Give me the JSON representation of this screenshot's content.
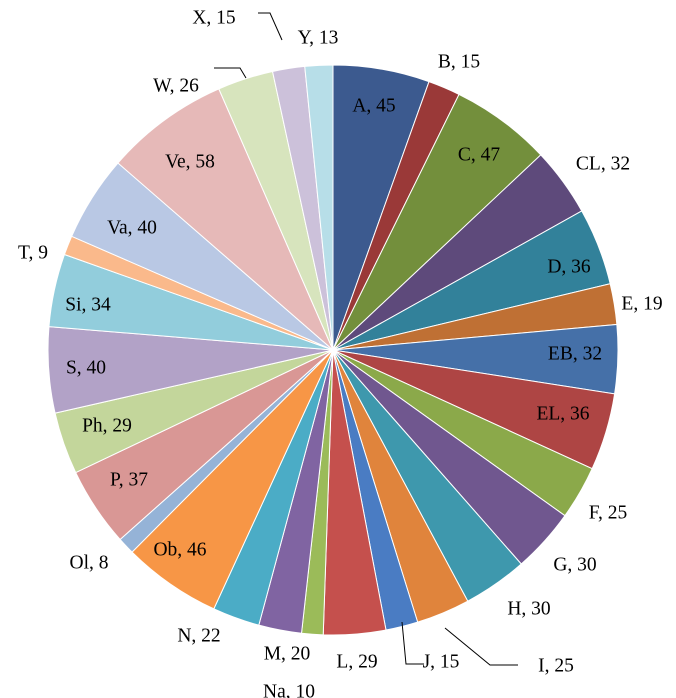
{
  "chart_data": {
    "type": "pie",
    "start_angle_deg": 0,
    "direction": "clockwise",
    "legend": "none",
    "data_label_format": "{category}, {value}",
    "slices": [
      {
        "category": "A",
        "value": 45,
        "label": "A, 45",
        "color": "#3c5a8f"
      },
      {
        "category": "B",
        "value": 15,
        "label": "B, 15",
        "color": "#9a3938"
      },
      {
        "category": "C",
        "value": 47,
        "label": "C, 47",
        "color": "#738f3c"
      },
      {
        "category": "CL",
        "value": 32,
        "label": "CL, 32",
        "color": "#5e4a7b"
      },
      {
        "category": "D",
        "value": 36,
        "label": "D, 36",
        "color": "#32819a"
      },
      {
        "category": "E",
        "value": 19,
        "label": "E, 19",
        "color": "#bf7034"
      },
      {
        "category": "EB",
        "value": 32,
        "label": "EB, 32",
        "color": "#4570a8"
      },
      {
        "category": "EL",
        "value": 36,
        "label": "EL, 36",
        "color": "#ae4544"
      },
      {
        "category": "F",
        "value": 25,
        "label": "F, 25",
        "color": "#8ba94a"
      },
      {
        "category": "G",
        "value": 30,
        "label": "G, 30",
        "color": "#70578f"
      },
      {
        "category": "H",
        "value": 30,
        "label": "H, 30",
        "color": "#3e98ad"
      },
      {
        "category": "I",
        "value": 25,
        "label": "I, 25",
        "color": "#e0843c"
      },
      {
        "category": "J",
        "value": 15,
        "label": "J, 15",
        "color": "#4a7cc3"
      },
      {
        "category": "L",
        "value": 29,
        "label": "L, 29",
        "color": "#c5504d"
      },
      {
        "category": "Na",
        "value": 10,
        "label": "Na, 10",
        "color": "#9bbb59"
      },
      {
        "category": "M",
        "value": 20,
        "label": "M, 20",
        "color": "#8064a2"
      },
      {
        "category": "N",
        "value": 22,
        "label": "N, 22",
        "color": "#4bacc6"
      },
      {
        "category": "Ob",
        "value": 46,
        "label": "Ob, 46",
        "color": "#f79646"
      },
      {
        "category": "Ol",
        "value": 8,
        "label": "Ol, 8",
        "color": "#95b3d7"
      },
      {
        "category": "P",
        "value": 37,
        "label": "P, 37",
        "color": "#d99795"
      },
      {
        "category": "Ph",
        "value": 29,
        "label": "Ph, 29",
        "color": "#c3d69b"
      },
      {
        "category": "S",
        "value": 40,
        "label": "S, 40",
        "color": "#b2a2c7"
      },
      {
        "category": "Si",
        "value": 34,
        "label": "Si, 34",
        "color": "#92cddc"
      },
      {
        "category": "T",
        "value": 9,
        "label": "T, 9",
        "color": "#fab98b"
      },
      {
        "category": "Va",
        "value": 40,
        "label": "Va, 40",
        "color": "#b9c8e4"
      },
      {
        "category": "Ve",
        "value": 58,
        "label": "Ve, 58",
        "color": "#e6b9b8"
      },
      {
        "category": "W",
        "value": 26,
        "label": "W, 26",
        "color": "#d7e4bd"
      },
      {
        "category": "X",
        "value": 15,
        "label": "X, 15",
        "color": "#ccc1da"
      },
      {
        "category": "Y",
        "value": 13,
        "label": "Y, 13",
        "color": "#b7dee8"
      }
    ]
  }
}
